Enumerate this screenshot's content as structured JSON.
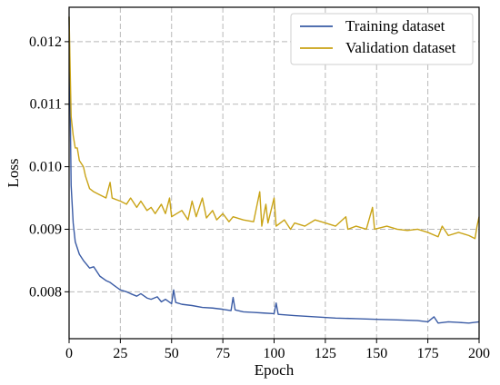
{
  "chart_data": {
    "type": "line",
    "title": "",
    "xlabel": "Epoch",
    "ylabel": "Loss",
    "xlim": [
      0,
      200
    ],
    "ylim": [
      0.00725,
      0.01255
    ],
    "x_ticks": [
      0,
      25,
      50,
      75,
      100,
      125,
      150,
      175,
      200
    ],
    "x_tick_labels": [
      "0",
      "25",
      "50",
      "75",
      "100",
      "125",
      "150",
      "175",
      "200"
    ],
    "y_ticks": [
      0.008,
      0.009,
      0.01,
      0.011,
      0.012
    ],
    "y_tick_labels": [
      "0.008",
      "0.009",
      "0.010",
      "0.011",
      "0.012"
    ],
    "grid": true,
    "legend": {
      "position": "top-right"
    },
    "series": [
      {
        "name": "Training dataset",
        "color": "#3a5ba5",
        "points": [
          [
            0,
            0.0124
          ],
          [
            1,
            0.0097
          ],
          [
            2,
            0.0091
          ],
          [
            3,
            0.0088
          ],
          [
            4,
            0.0087
          ],
          [
            5,
            0.0086
          ],
          [
            7,
            0.0085
          ],
          [
            10,
            0.00838
          ],
          [
            12,
            0.0084
          ],
          [
            15,
            0.00825
          ],
          [
            18,
            0.00818
          ],
          [
            20,
            0.00815
          ],
          [
            22,
            0.0081
          ],
          [
            25,
            0.00803
          ],
          [
            28,
            0.008
          ],
          [
            30,
            0.00797
          ],
          [
            33,
            0.00793
          ],
          [
            35,
            0.00797
          ],
          [
            38,
            0.0079
          ],
          [
            40,
            0.00788
          ],
          [
            43,
            0.00792
          ],
          [
            45,
            0.00784
          ],
          [
            47,
            0.00788
          ],
          [
            50,
            0.00781
          ],
          [
            51,
            0.00803
          ],
          [
            52,
            0.00783
          ],
          [
            55,
            0.0078
          ],
          [
            60,
            0.00778
          ],
          [
            65,
            0.00775
          ],
          [
            70,
            0.00774
          ],
          [
            75,
            0.00772
          ],
          [
            79,
            0.0077
          ],
          [
            80,
            0.00791
          ],
          [
            81,
            0.00771
          ],
          [
            85,
            0.00768
          ],
          [
            90,
            0.00767
          ],
          [
            95,
            0.00766
          ],
          [
            100,
            0.00765
          ],
          [
            101,
            0.00782
          ],
          [
            102,
            0.00764
          ],
          [
            110,
            0.00762
          ],
          [
            120,
            0.0076
          ],
          [
            130,
            0.00758
          ],
          [
            140,
            0.00757
          ],
          [
            150,
            0.00756
          ],
          [
            160,
            0.00755
          ],
          [
            170,
            0.00754
          ],
          [
            175,
            0.00752
          ],
          [
            178,
            0.0076
          ],
          [
            180,
            0.0075
          ],
          [
            185,
            0.00752
          ],
          [
            190,
            0.00751
          ],
          [
            195,
            0.0075
          ],
          [
            200,
            0.00752
          ]
        ]
      },
      {
        "name": "Validation dataset",
        "color": "#c9a315",
        "points": [
          [
            0,
            0.0124
          ],
          [
            1,
            0.0108
          ],
          [
            2,
            0.0105
          ],
          [
            3,
            0.0103
          ],
          [
            4,
            0.0103
          ],
          [
            5,
            0.0101
          ],
          [
            7,
            0.01
          ],
          [
            8,
            0.00985
          ],
          [
            10,
            0.00965
          ],
          [
            12,
            0.0096
          ],
          [
            15,
            0.00955
          ],
          [
            18,
            0.0095
          ],
          [
            20,
            0.00975
          ],
          [
            21,
            0.0095
          ],
          [
            25,
            0.00945
          ],
          [
            28,
            0.0094
          ],
          [
            30,
            0.0095
          ],
          [
            33,
            0.00935
          ],
          [
            35,
            0.00945
          ],
          [
            38,
            0.0093
          ],
          [
            40,
            0.00935
          ],
          [
            42,
            0.00925
          ],
          [
            45,
            0.0094
          ],
          [
            47,
            0.00925
          ],
          [
            49,
            0.0095
          ],
          [
            50,
            0.0092
          ],
          [
            55,
            0.0093
          ],
          [
            58,
            0.00915
          ],
          [
            60,
            0.00945
          ],
          [
            62,
            0.0092
          ],
          [
            65,
            0.0095
          ],
          [
            67,
            0.00918
          ],
          [
            70,
            0.0093
          ],
          [
            72,
            0.00915
          ],
          [
            75,
            0.00925
          ],
          [
            78,
            0.00912
          ],
          [
            80,
            0.0092
          ],
          [
            85,
            0.00915
          ],
          [
            90,
            0.00912
          ],
          [
            93,
            0.0096
          ],
          [
            94,
            0.00905
          ],
          [
            96,
            0.0094
          ],
          [
            97,
            0.0091
          ],
          [
            100,
            0.0095
          ],
          [
            101,
            0.00905
          ],
          [
            105,
            0.00915
          ],
          [
            108,
            0.009
          ],
          [
            110,
            0.0091
          ],
          [
            115,
            0.00905
          ],
          [
            120,
            0.00915
          ],
          [
            125,
            0.0091
          ],
          [
            130,
            0.00905
          ],
          [
            135,
            0.0092
          ],
          [
            136,
            0.009
          ],
          [
            140,
            0.00905
          ],
          [
            145,
            0.009
          ],
          [
            148,
            0.00935
          ],
          [
            149,
            0.009
          ],
          [
            155,
            0.00905
          ],
          [
            160,
            0.009
          ],
          [
            165,
            0.00898
          ],
          [
            170,
            0.009
          ],
          [
            175,
            0.00895
          ],
          [
            180,
            0.00888
          ],
          [
            182,
            0.00905
          ],
          [
            185,
            0.0089
          ],
          [
            190,
            0.00895
          ],
          [
            195,
            0.0089
          ],
          [
            198,
            0.00885
          ],
          [
            199,
            0.00905
          ],
          [
            200,
            0.0092
          ]
        ]
      }
    ]
  }
}
